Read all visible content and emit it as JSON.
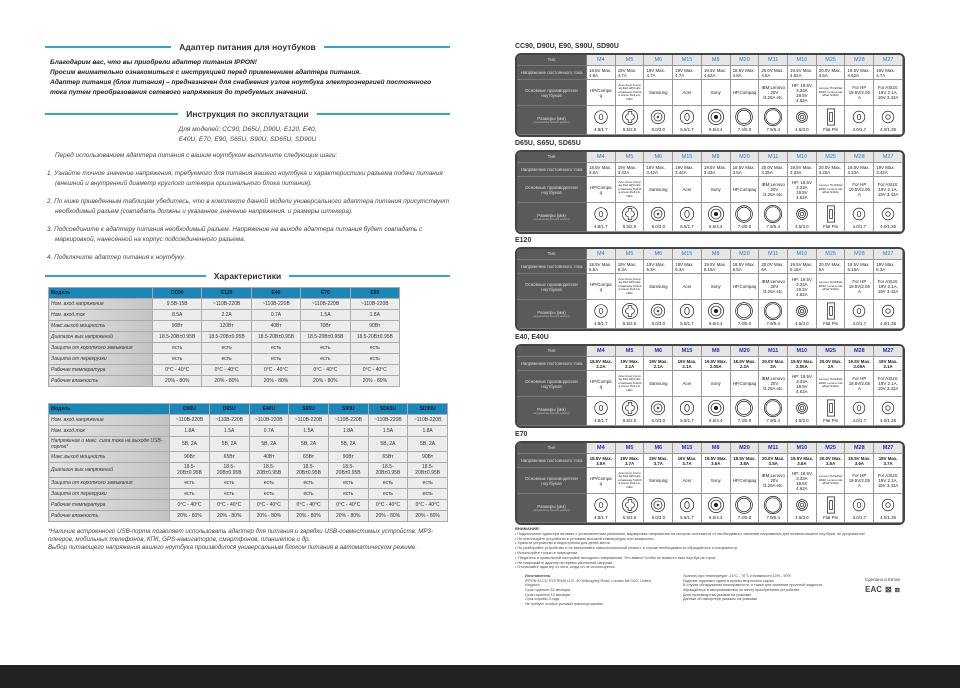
{
  "header": {
    "title": "Адаптер питания для ноутбуков"
  },
  "intro": [
    "Благодарим вас, что вы приобрели адаптер питания IPPON!",
    "Просим внимательно ознакомиться с инструкцией перед применением адаптера питания.",
    "Адаптер питания (блок питания) – предназначен для снабжения узлов ноутбука электроэнергией постоянного тока путем преобразования сетевого напряжения до требуемых значений."
  ],
  "manual": {
    "title": "Инструкция по эксплуатации",
    "models_line1": "Для моделей: CC90, D65U, D90U, E120, E40,",
    "models_line2": "E40U, E70, E90, S65U, S90U, SD65U, SD90U",
    "pre": "Перед использованием адаптера питания с вашим ноутбуком выполните следующие шаги:",
    "steps": [
      "1. Узнайте точное значение напряжения, требуемого для питания вашего ноутбука и характеристики разъема подачи питания (внешний и внутренний диаметр круглого штекера оригинального блока питания).",
      "2. По ниже приведенным таблицам убедитесь, что в комплекте данной модели универсального адаптера питания присутствует необходимый разъем (совпадать должны и указанное значение напряжения, и размеры штекера).",
      "3. Подсоедините к адаптеру питания необходимый разъем. Напряжение на выходе адаптера питания будет совпадать с маркировкой, нанесенной на корпус подсоединенного разъема.",
      "4. Подключите адаптер питания к ноутбуку."
    ]
  },
  "specs": {
    "title": "Характеристики",
    "table1": {
      "header": [
        "Модель",
        "CC90",
        "E120",
        "E40",
        "E70",
        "E90"
      ],
      "rows": [
        [
          "Ном. вход.напряжение",
          "9.5В-15В",
          "~110В-220В",
          "~110В-220В",
          "~110В-220В",
          "~110В-220В"
        ],
        [
          "Ном. вход.ток",
          "8.5A",
          "2.2A",
          "0.7A",
          "1.5A",
          "1.8A"
        ],
        [
          "Макс.выход.мощность",
          "90Вт",
          "120Вт",
          "40Вт",
          "70Вт",
          "90Вт"
        ],
        [
          "Диапазон вых.напряжений",
          "18.5-20В±0.95В",
          "18.5-20В±0.95В",
          "18.5-20В±0.95В",
          "18.5-20В±0.95В",
          "18.5-20В±0.95В"
        ],
        [
          "Защита от короткого замыкания",
          "есть",
          "есть",
          "есть",
          "есть",
          "есть"
        ],
        [
          "Защита от перегрузки",
          "есть",
          "есть",
          "есть",
          "есть",
          "есть"
        ],
        [
          "Рабочая температура",
          "0°C - 40°C",
          "0°C - 40°C",
          "0°C - 40°C",
          "0°C - 40°C",
          "0°C - 40°C"
        ],
        [
          "Рабочая влажность",
          "20% - 80%",
          "20% - 80%",
          "20% - 80%",
          "20% - 80%",
          "20% - 80%"
        ]
      ]
    },
    "table2": {
      "header": [
        "Модель",
        "D90U",
        "D65U",
        "E40U",
        "S65U",
        "S90U",
        "SD65U",
        "SD90U"
      ],
      "rows": [
        [
          "Ном. вход.напряжение",
          "~110В-220В",
          "~110В-220В",
          "~110В-220В",
          "~110В-220В",
          "~110В-220В",
          "~110В-220В",
          "~110В-220В"
        ],
        [
          "Ном. вход.ток",
          "1.8A",
          "1.5A",
          "0.7A",
          "1.5A",
          "1.8A",
          "1.5A",
          "1.8A"
        ],
        [
          "Напряжение и макс. сила тока на выходе USB-порта*",
          "5В, 2А",
          "5В, 2А",
          "5В, 2А",
          "5В, 2А",
          "5В, 2А",
          "5В, 2А",
          "5В, 2А"
        ],
        [
          "Макс.выход.мощность",
          "90Вт",
          "65Вт",
          "40Вт",
          "65Вт",
          "90Вт",
          "65Вт",
          "90Вт"
        ],
        [
          "Диапазон вых.напряжений",
          "18.5-20В±0.95В",
          "18.5-20В±0.95В",
          "18.5-20В±0.95В",
          "18.5-20В±0.95В",
          "18.5-20В±0.95В",
          "18.5-20В±0.95В",
          "18.5-20В±0.95В"
        ],
        [
          "Защита от короткого замыкания",
          "есть",
          "есть",
          "есть",
          "есть",
          "есть",
          "есть",
          "есть"
        ],
        [
          "Защита от перегрузки",
          "есть",
          "есть",
          "есть",
          "есть",
          "есть",
          "есть",
          "есть"
        ],
        [
          "Рабочая температура",
          "0°C - 40°C",
          "0°C - 40°C",
          "0°C - 40°C",
          "0°C - 40°C",
          "0°C - 40°C",
          "0°C - 40°C",
          "0°C - 40°C"
        ],
        [
          "Рабочая влажность",
          "20% - 80%",
          "20% - 80%",
          "20% - 80%",
          "20% - 80%",
          "20% - 80%",
          "20% - 80%",
          "20% - 80%"
        ]
      ]
    },
    "footnote": [
      "*Наличие встроенного USB-порта позволяет использовать адаптер для питания и зарядки USB-совместимых устройств: MP3-плееров, мобильных телефонов, КПК, GPS-навигаторов, смартфонов, планшетов и др.",
      "Выбор питающего напряжения вашего ноутбука производится универсальным блоком питания в автоматическом режиме."
    ]
  },
  "connectors": {
    "row_labels": [
      "Тип",
      "Напряжение постоянного тока",
      "Основные производители ноутбуков",
      "Размеры (мм)"
    ],
    "size_sublabel": "наружный/внутренний диаметр",
    "types": [
      "M4",
      "M5",
      "M6",
      "M15",
      "M8",
      "M20",
      "M11",
      "M10",
      "M25",
      "M28",
      "M27"
    ],
    "makers": [
      "HP/Compaq",
      "Acer,Asus,Compaq,Dell,HP,Fujitsu,Gateway,Toshiba,Liteon,Dell,LG,NEC",
      "Samsung",
      "Acer",
      "Sony",
      "HP,Compaq",
      "IBM,Lenovo: 20V /3.25A etc.",
      "HP: 19.5V 3.33A 19.5V 4.62A",
      "Lenovo ThinkPad E540, Lenovo IdeaPad S410p",
      "For HP 19.5V/2.05A",
      "For ASUS: 19V 2.1A, 19V 3.42A"
    ],
    "sizes": [
      "4.8/1.7",
      "5.5/2.5",
      "5.0/3.0",
      "5.5/1.7",
      "6.5/4.4",
      "7.4/5.0",
      "7.9/5.4",
      "4.5/3.0",
      "Flat Pin",
      "4.0/1.7",
      "4.0/1.35"
    ],
    "tables": [
      {
        "title": "CC90, D90U, E90, S90U, SD90U",
        "voltages": [
          "18.5V Max. 4.8A",
          "19V Max. 4.7A",
          "19V Max. 4.7A",
          "19V Max. 4.7A",
          "19.5V Max. 4.62A",
          "18.5V Max. 4.8A",
          "20.0V Max. 4.5A",
          "19.5V Max. 4.62A",
          "20.0V Max. 4.5A",
          "19.5V Max. 4.62A",
          "19V Max. 4.7A"
        ]
      },
      {
        "title": "D65U, S65U, SD65U",
        "voltages": [
          "18.5V Max. 3.5A",
          "19V Max. 3.42A",
          "19V Max. 3.42A",
          "19V Max. 3.42A",
          "19.5V Max. 3.33A",
          "18.5V Max. 3.5A",
          "20.0V Max. 3.25A",
          "19.5V Max. 3.33A",
          "20.0V Max. 3.25A",
          "19.5V Max. 3.33A",
          "19V Max. 3.42A"
        ]
      },
      {
        "title": "E120",
        "voltages": [
          "18.5V Max. 6.5A",
          "19V Max. 6.3A",
          "19V Max. 6.3A",
          "19V Max. 6.3A",
          "19.5V Max. 6.15A",
          "18.5V Max. 6.5A",
          "20.0V Max. 6A",
          "19.5V Max. 6.15A",
          "20.0V Max. 6A",
          "19.5V Max. 6.15A",
          "19V Max. 6.3A"
        ]
      },
      {
        "title": "E40, E40U",
        "voltages": [
          "18.5V Max. 2.2A",
          "19V Max. 2.1A",
          "19V Max. 2.1A",
          "19V Max. 2.1A",
          "19.5V Max. 2.05A",
          "18.5V Max. 2.2A",
          "20.0V Max. 2A",
          "19.5V Max. 2.05A",
          "20.0V Max. 2A",
          "19.5V Max. 2.05A",
          "19V Max. 2.1A"
        ]
      },
      {
        "title": "E70",
        "voltages": [
          "18.5V Max. 3.8A",
          "19V Max. 3.7A",
          "19V Max. 3.7A",
          "19V Max. 3.7A",
          "19.5V Max. 3.6A",
          "18.5V Max. 3.8A",
          "20.0V Max. 3.5A",
          "19.5V Max. 3.6A",
          "20.0V Max. 3.5A",
          "19.5V Max. 3.6A",
          "19V Max. 3.7A"
        ]
      }
    ]
  },
  "warning": {
    "title": "ВНИМАНИЕ!",
    "items": [
      "• Подключение адаптера питания с установленным разъемом, маркировка напряжения на котором отличается от необходимого значения напряжения для питания вашего ноутбука, не допускается!",
      "• Не используйте устройство в условиях высокой температуры или влажности.",
      "• Храните устройство в недоступном для детей месте.",
      "• Не разбирайте устройство и не выполняйте самостоятельный ремонт, в случае необходимости обращайтесь к специалисту.",
      "• Используйте только в помещении.",
      "• Убедитесь в правильной настройке выходного напряжения. Это важно! Чтобы не вывести ваш ноутбук из строя.",
      "• Не накрывайте адаптер во время усиленной нагрузки.",
      "• Отключайте адаптер от сети, когда он не используется."
    ]
  },
  "manufacturer": {
    "title": "Изготовитель:",
    "lines": [
      "IPPON ELCO SYSTEMS LLP., 40 Willoughby Road, London N8 OJG, United Kingdom",
      "Срок годности 15 месяцев",
      "Срок гарантии 12 месяцев",
      "Срок службы 3 года",
      "Не требует особых условий транспортировки"
    ]
  },
  "storage": {
    "lines": [
      "Хранить при температуре -15°C - 70°C и влажности 10% - 90%",
      "Изделие подлежит сдаче в пункты вторичного сырья",
      "В случае обнаружения неисправности, а также для хранения пролитой жидкости",
      "обращайтесь в авторизованные по месту приобретения устройства",
      "Дата производства указана на упаковке",
      "Данные об импортере указаны на упаковке"
    ]
  },
  "made_in": "Сделано в Китае",
  "marks": [
    "EAC",
    "recycle-bin-crossed-icon",
    "double-insulation-icon"
  ]
}
